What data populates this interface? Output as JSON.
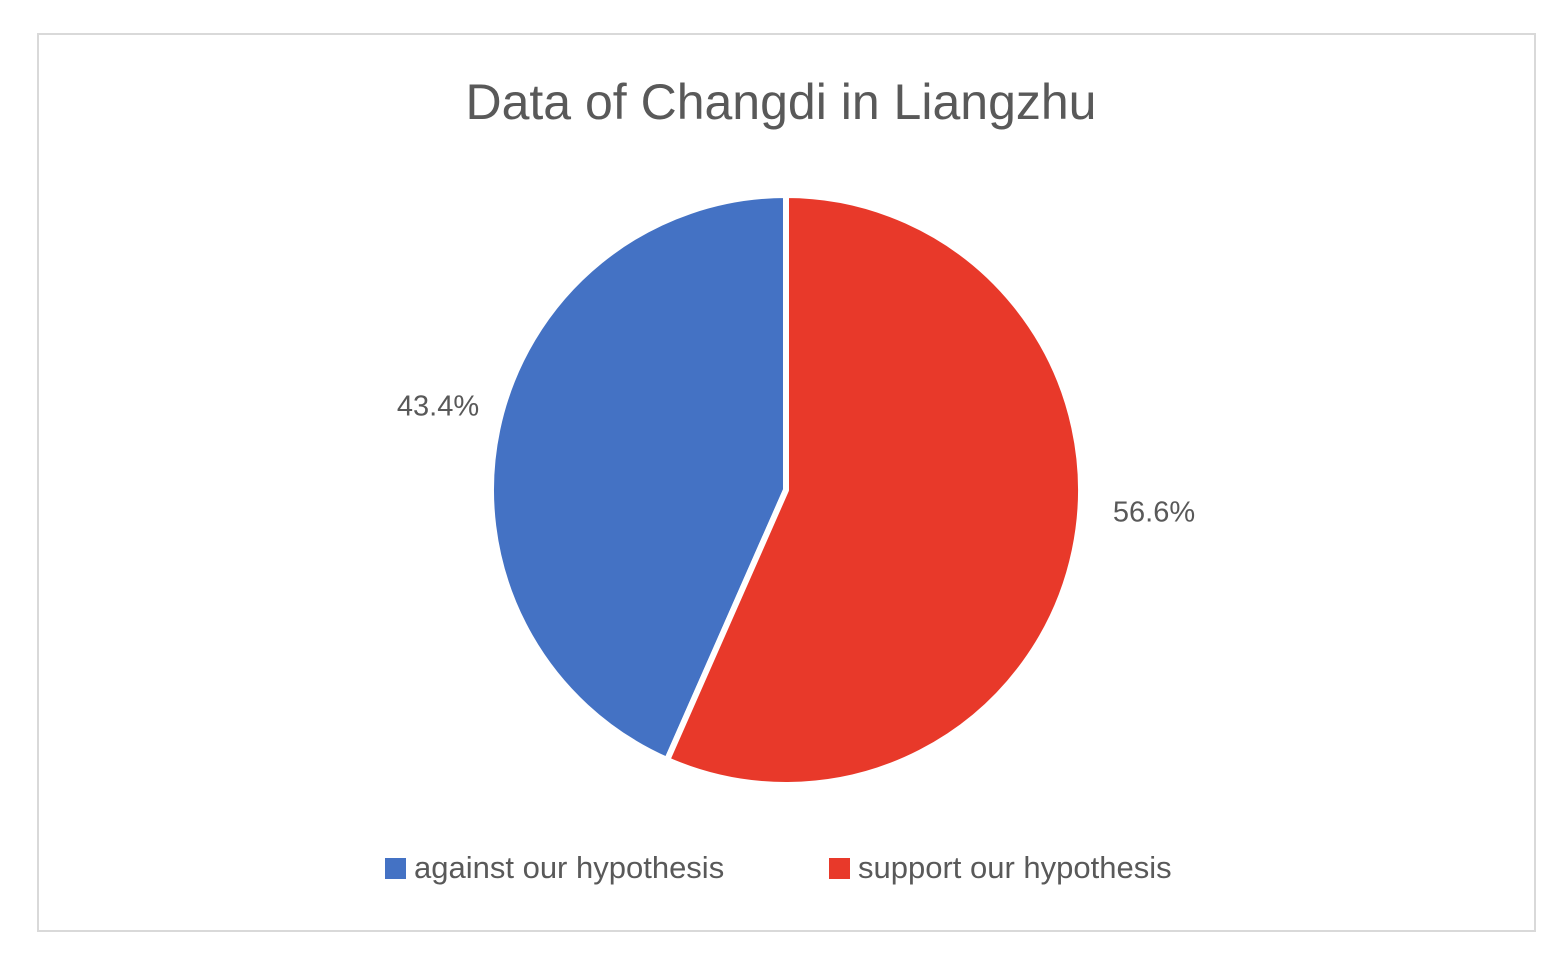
{
  "chart_data": {
    "type": "pie",
    "title": "Data of Changdi in Liangzhu",
    "categories": [
      "against our hypothesis",
      "support our hypothesis"
    ],
    "values": [
      43.4,
      56.6
    ],
    "data_labels": [
      "43.4%",
      "56.6%"
    ],
    "colors": [
      "#4472c4",
      "#e8392a"
    ],
    "legend_position": "bottom"
  }
}
